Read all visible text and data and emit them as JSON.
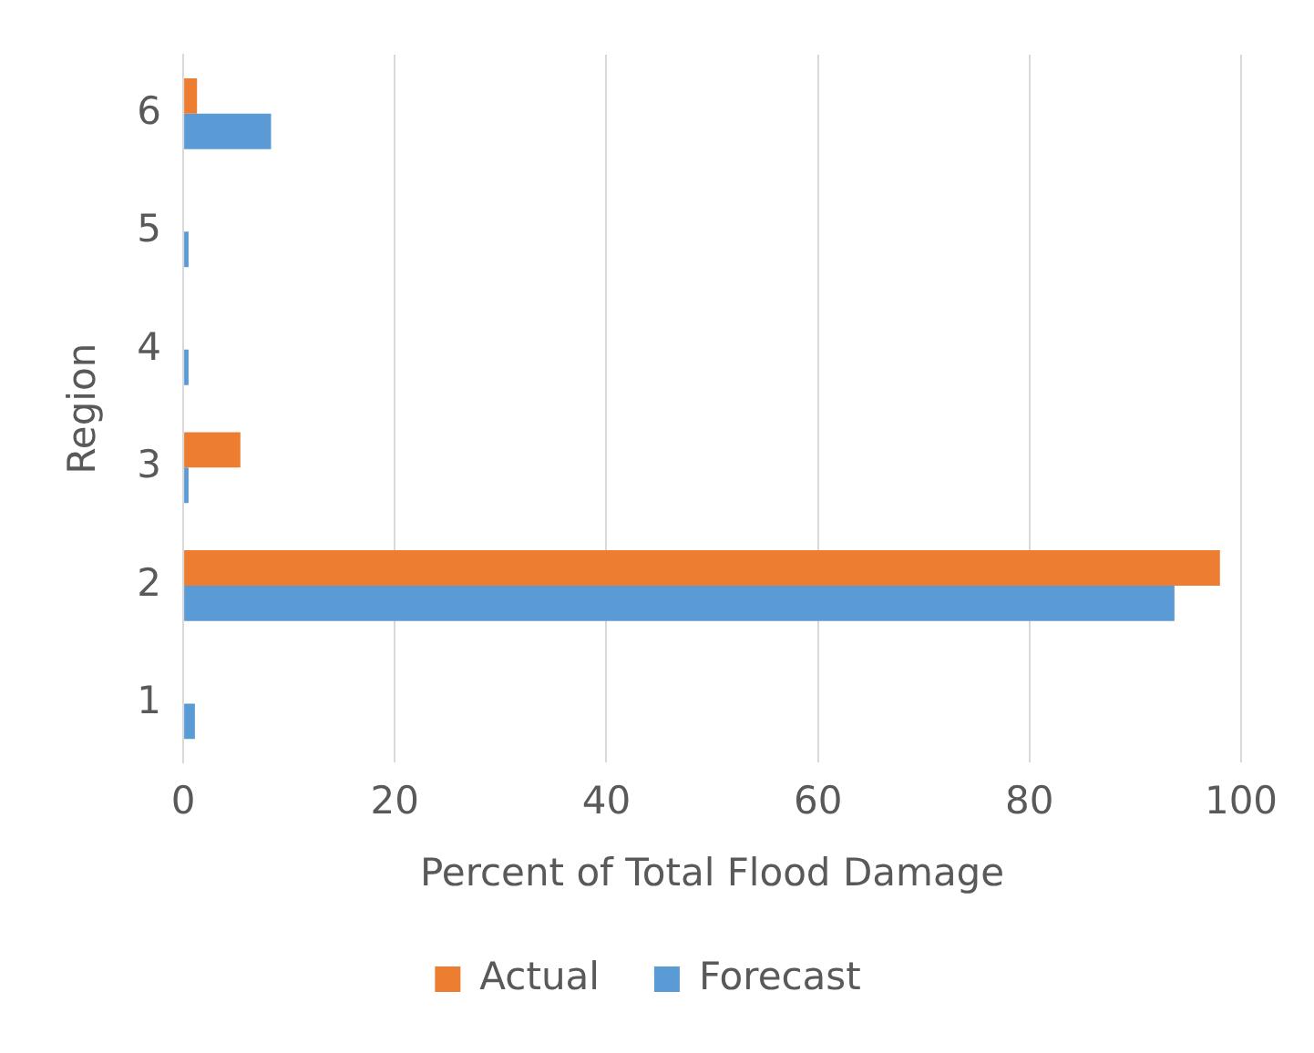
{
  "chart_data": {
    "type": "bar",
    "orientation": "horizontal",
    "xlabel": "Percent of Total Flood Damage",
    "ylabel": "Region",
    "categories": [
      "6",
      "5",
      "4",
      "3",
      "2",
      "1"
    ],
    "series": [
      {
        "name": "Actual",
        "color": "#ed7d31",
        "values": [
          1.3,
          0,
          0,
          5.4,
          98,
          0
        ]
      },
      {
        "name": "Forecast",
        "color": "#5b9bd5",
        "values": [
          8.3,
          0.5,
          0.5,
          0.5,
          93.7,
          1.1
        ]
      }
    ],
    "xlim": [
      0,
      100
    ],
    "xticks": [
      0,
      20,
      40,
      60,
      80,
      100
    ],
    "grid": "x",
    "legend": "bottom"
  }
}
